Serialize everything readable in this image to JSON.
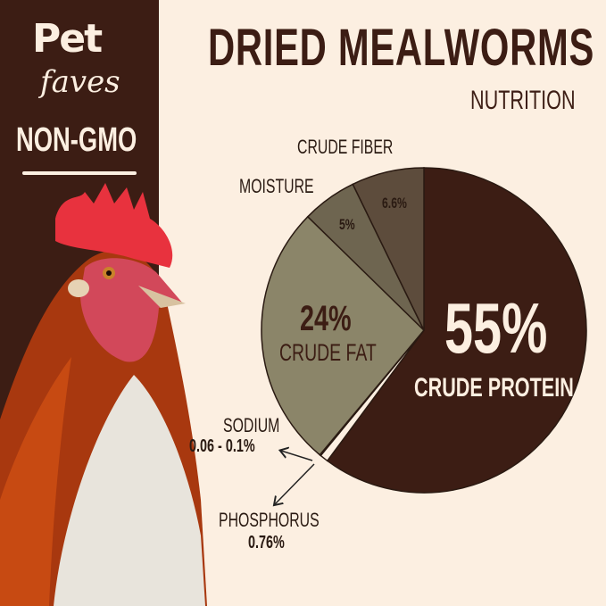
{
  "brand": {
    "name_top": "Pet",
    "name_bottom": "faves",
    "badge": "NON-GMO"
  },
  "header": {
    "title": "DRIED MEALWORMS",
    "subtitle": "NUTRITION"
  },
  "chart_data": {
    "type": "pie",
    "title": "DRIED MEALWORMS",
    "subtitle": "NUTRITION",
    "slices": [
      {
        "name": "CRUDE PROTEIN",
        "value": 55,
        "label": "55%",
        "color": "#3c1d14"
      },
      {
        "name": "PHOSPHORUS",
        "value": 0.76,
        "label": "0.76%",
        "color": "#fcefe1"
      },
      {
        "name": "SODIUM",
        "value": 0.1,
        "label": "0.06 - 0.1%",
        "color": "#fcefe1"
      },
      {
        "name": "CRUDE FAT",
        "value": 24,
        "label": "24%",
        "color": "#8b8569"
      },
      {
        "name": "MOISTURE",
        "value": 5,
        "label": "5%",
        "color": "#6e6550"
      },
      {
        "name": "CRUDE FIBER",
        "value": 6.6,
        "label": "6.6%",
        "color": "#5d4c3c"
      }
    ],
    "start": "top",
    "direction": "clockwise",
    "units": "%"
  }
}
